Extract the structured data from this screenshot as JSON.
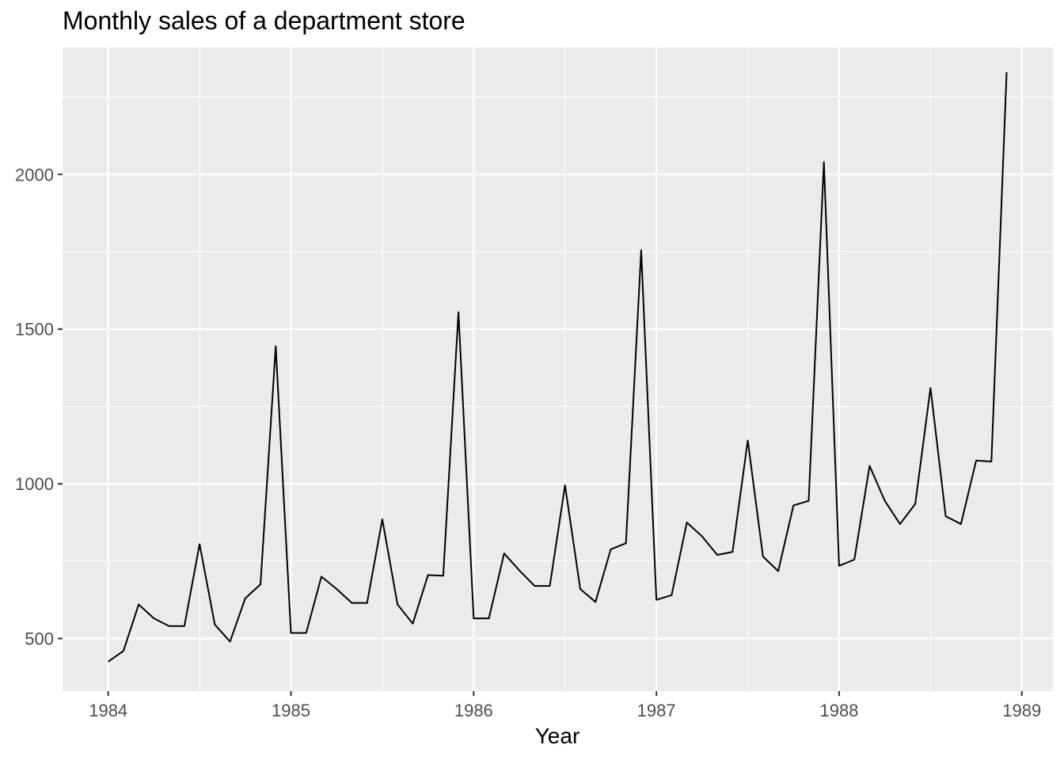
{
  "chart_data": {
    "type": "line",
    "title": "Monthly sales of a department store",
    "xlabel": "Year",
    "ylabel": "",
    "x_start": "1984-01",
    "x_ticks": [
      1984,
      1985,
      1986,
      1987,
      1988,
      1989
    ],
    "y_ticks": [
      500,
      1000,
      1500,
      2000
    ],
    "xlim": [
      1983.75,
      1989.17
    ],
    "ylim": [
      330,
      2410
    ],
    "grid": true,
    "series": [
      {
        "values": [
          425,
          460,
          610,
          565,
          540,
          540,
          805,
          545,
          490,
          630,
          675,
          1445,
          518,
          518,
          700,
          660,
          615,
          615,
          885,
          610,
          548,
          705,
          703,
          1555,
          565,
          565,
          775,
          720,
          670,
          670,
          995,
          660,
          618,
          788,
          808,
          1755,
          625,
          640,
          875,
          830,
          770,
          780,
          1140,
          765,
          718,
          930,
          945,
          2040,
          735,
          755,
          1058,
          945,
          870,
          935,
          1310,
          895,
          870,
          1075,
          1072,
          2330
        ]
      }
    ],
    "colors": {
      "panel": "#ebebeb",
      "grid": "#ffffff",
      "line": "#000000",
      "tick_text": "#4d4d4d"
    }
  }
}
